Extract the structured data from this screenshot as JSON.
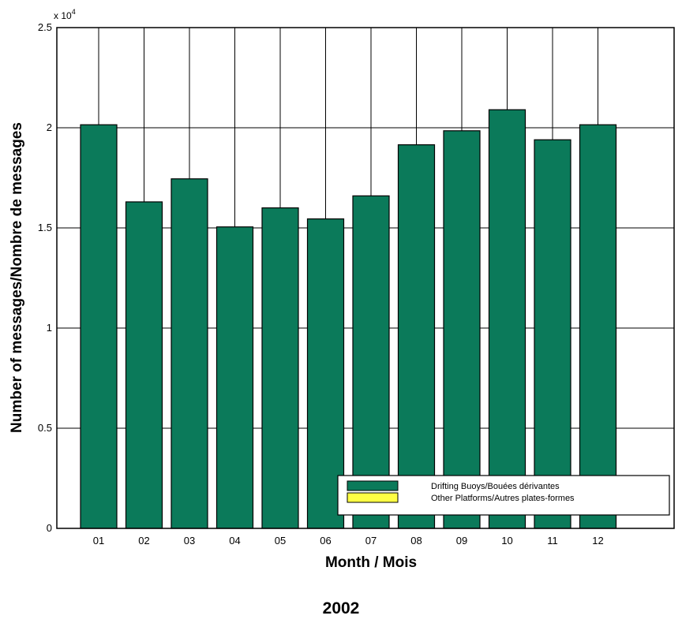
{
  "chart_data": {
    "type": "bar",
    "categories": [
      "01",
      "02",
      "03",
      "04",
      "05",
      "06",
      "07",
      "08",
      "09",
      "10",
      "11",
      "12"
    ],
    "series": [
      {
        "name": "Drifting Buoys/Bouées dérivantes",
        "values": [
          20150,
          16300,
          17450,
          15050,
          16000,
          15450,
          16600,
          19150,
          19850,
          20900,
          19400,
          20150
        ],
        "color": "#0b7a5a"
      },
      {
        "name": "Other Platforms/Autres plates-formes",
        "values": [
          0,
          0,
          0,
          0,
          0,
          0,
          0,
          0,
          0,
          0,
          0,
          0
        ],
        "color": "#ffff44"
      }
    ],
    "ylabel": "Number of messages/Nombre de messages",
    "xlabel": "Month / Mois",
    "ylim": [
      0,
      25000
    ],
    "yticks": [
      0,
      5000,
      10000,
      15000,
      20000,
      25000
    ],
    "ytick_labels": [
      "0",
      "0.5",
      "1",
      "1.5",
      "2",
      "2.5"
    ],
    "y_multiplier": "x 10",
    "y_multiplier_exp": "4",
    "grid": "horizontal and vertical",
    "legend_position": "bottom-right"
  },
  "caption": "2002"
}
